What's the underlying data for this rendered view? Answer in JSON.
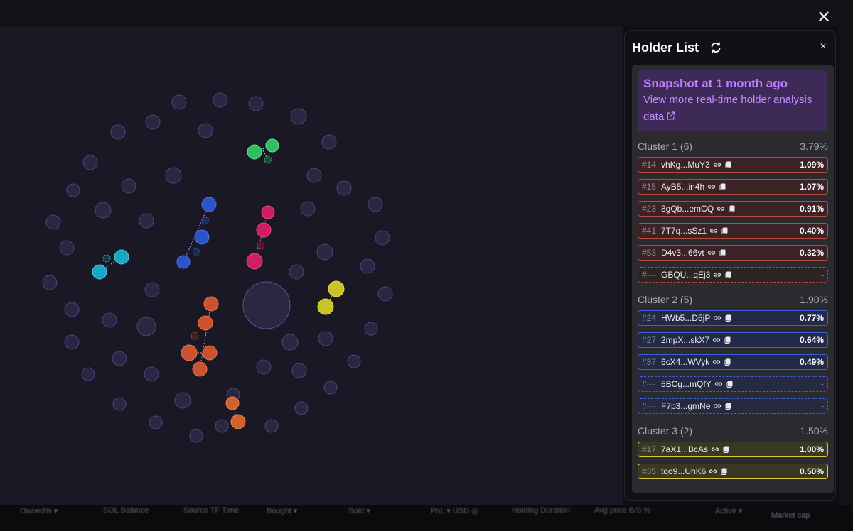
{
  "panel": {
    "title": "Holder List",
    "close_label": "×",
    "snapshot": {
      "title": "Snapshot at 1 month ago",
      "link_text": "View more real-time holder analysis data"
    },
    "clusters": [
      {
        "name": "Cluster 1 (6)",
        "total": "3.79%",
        "color": "red",
        "rows": [
          {
            "rank": "#14",
            "addr": "vhKg...MuY3",
            "pct": "1.09%",
            "dashed": false
          },
          {
            "rank": "#15",
            "addr": "AyB5...in4h",
            "pct": "1.07%",
            "dashed": false
          },
          {
            "rank": "#23",
            "addr": "8gQb...emCQ",
            "pct": "0.91%",
            "dashed": false
          },
          {
            "rank": "#41",
            "addr": "7T7q...sSz1",
            "pct": "0.40%",
            "dashed": false
          },
          {
            "rank": "#53",
            "addr": "D4v3...66vt",
            "pct": "0.32%",
            "dashed": false
          },
          {
            "rank": "#---",
            "addr": "GBQU...qEj3",
            "pct": "-",
            "dashed": true
          }
        ]
      },
      {
        "name": "Cluster 2 (5)",
        "total": "1.90%",
        "color": "blue",
        "rows": [
          {
            "rank": "#24",
            "addr": "HWb5...D5jP",
            "pct": "0.77%",
            "dashed": false
          },
          {
            "rank": "#27",
            "addr": "2mpX...skX7",
            "pct": "0.64%",
            "dashed": false
          },
          {
            "rank": "#37",
            "addr": "6cX4...WVyk",
            "pct": "0.49%",
            "dashed": false
          },
          {
            "rank": "#---",
            "addr": "5BCg...mQfY",
            "pct": "-",
            "dashed": true
          },
          {
            "rank": "#---",
            "addr": "F7p3...gmNe",
            "pct": "-",
            "dashed": true
          }
        ]
      },
      {
        "name": "Cluster 3 (2)",
        "total": "1.50%",
        "color": "yellow",
        "rows": [
          {
            "rank": "#17",
            "addr": "7aX1...BcAs",
            "pct": "1.00%",
            "dashed": false
          },
          {
            "rank": "#35",
            "addr": "tqo9...UhK6",
            "pct": "0.50%",
            "dashed": false
          }
        ]
      }
    ]
  },
  "background_columns": [
    "Owned% ▾",
    "SOL Balance",
    "Source TF Time",
    "Bought ▾",
    "Sold ▾",
    "PnL ▾   USD ◎",
    "Holding Duration",
    "Avg price B/S %",
    "Active ▾"
  ],
  "market_cap_label": "Market cap",
  "colors": {
    "accent": "#b56cf7",
    "cluster_red": "#c9532e",
    "cluster_blue": "#2c54c9",
    "cluster_yellow": "#c9c22a",
    "cluster_pink": "#d01e63",
    "cluster_green": "#2fbf60",
    "cluster_cyan": "#19a8c4"
  }
}
